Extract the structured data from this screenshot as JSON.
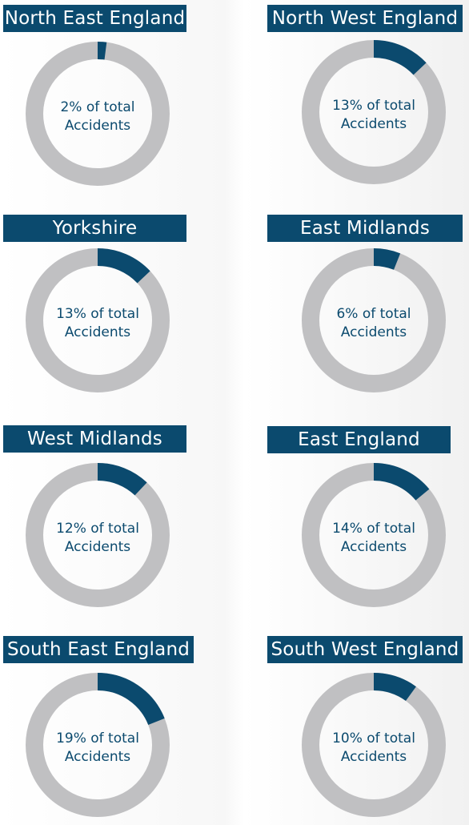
{
  "chart_data": [
    {
      "type": "pie",
      "title": "North East England",
      "values": [
        2
      ],
      "center_line1": "2% of total",
      "center_line2": "Accidents"
    },
    {
      "type": "pie",
      "title": "North West England",
      "values": [
        13
      ],
      "center_line1": "13% of total",
      "center_line2": "Accidents"
    },
    {
      "type": "pie",
      "title": "Yorkshire",
      "values": [
        13
      ],
      "center_line1": "13% of total",
      "center_line2": "Accidents"
    },
    {
      "type": "pie",
      "title": "East Midlands",
      "values": [
        6
      ],
      "center_line1": "6% of total",
      "center_line2": "Accidents"
    },
    {
      "type": "pie",
      "title": "West Midlands",
      "values": [
        12
      ],
      "center_line1": "12% of total",
      "center_line2": "Accidents"
    },
    {
      "type": "pie",
      "title": "East England",
      "values": [
        14
      ],
      "center_line1": "14% of total",
      "center_line2": "Accidents"
    },
    {
      "type": "pie",
      "title": "South East England",
      "values": [
        19
      ],
      "center_line1": "19% of total",
      "center_line2": "Accidents"
    },
    {
      "type": "pie",
      "title": "South West England",
      "values": [
        10
      ],
      "center_line1": "10% of total",
      "center_line2": "Accidents"
    }
  ],
  "colors": {
    "highlight": "#0b4a6e",
    "remainder": "#c0c0c2",
    "label_bg": "#0b4a6e",
    "label_text": "#ffffff"
  }
}
